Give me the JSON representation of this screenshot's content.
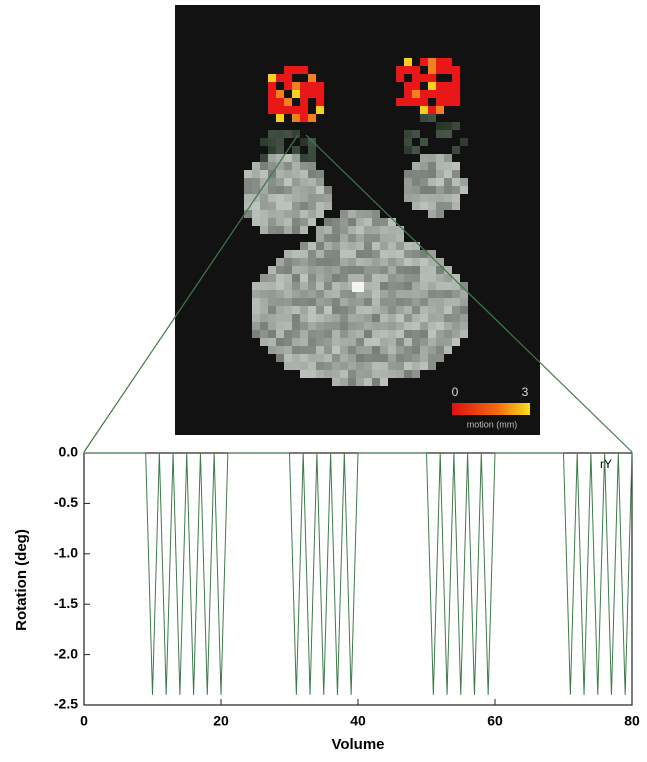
{
  "chart_data": {
    "type": "line",
    "xlabel": "Volume",
    "ylabel": "Rotation (deg)",
    "annotation": "rY",
    "x": [
      0,
      1,
      2,
      3,
      4,
      5,
      6,
      7,
      8,
      9,
      10,
      11,
      12,
      13,
      14,
      15,
      16,
      17,
      18,
      19,
      20,
      21,
      22,
      23,
      24,
      25,
      26,
      27,
      28,
      29,
      30,
      31,
      32,
      33,
      34,
      35,
      36,
      37,
      38,
      39,
      40,
      41,
      42,
      43,
      44,
      45,
      46,
      47,
      48,
      49,
      50,
      51,
      52,
      53,
      54,
      55,
      56,
      57,
      58,
      59,
      60,
      61,
      62,
      63,
      64,
      65,
      66,
      67,
      68,
      69,
      70,
      71,
      72,
      73,
      74,
      75,
      76,
      77,
      78,
      79,
      80
    ],
    "series": [
      {
        "color": "#3f7a4a",
        "values": [
          0,
          0,
          0,
          0,
          0,
          0,
          0,
          0,
          0,
          0,
          -2.4,
          0,
          -2.4,
          0,
          -2.4,
          0,
          -2.4,
          0,
          -2.4,
          0,
          -2.4,
          0,
          0,
          0,
          0,
          0,
          0,
          0,
          0,
          0,
          0,
          -2.4,
          0,
          -2.4,
          0,
          -2.4,
          0,
          -2.4,
          0,
          -2.4,
          0,
          0,
          0,
          0,
          0,
          0,
          0,
          0,
          0,
          0,
          0,
          -2.4,
          0,
          -2.4,
          0,
          -2.4,
          0,
          -2.4,
          0,
          -2.4,
          0,
          0,
          0,
          0,
          0,
          0,
          0,
          0,
          0,
          0,
          0,
          -2.4,
          0,
          -2.4,
          0,
          -2.4,
          0,
          -2.4,
          0,
          -2.4,
          0
        ]
      }
    ],
    "xlim": [
      0,
      80
    ],
    "xticks": [
      0,
      20,
      40,
      60,
      80
    ],
    "ylim": [
      -2.5,
      0
    ],
    "yticks": [
      {
        "value": 0,
        "label": "0.0"
      },
      -0.5,
      {
        "value": -1,
        "label": "-1.0"
      },
      -1.5,
      {
        "value": -2,
        "label": "-2.0"
      },
      -2.5
    ],
    "colorbar": {
      "min": 0,
      "max": 3,
      "label": "motion (mm)"
    }
  }
}
